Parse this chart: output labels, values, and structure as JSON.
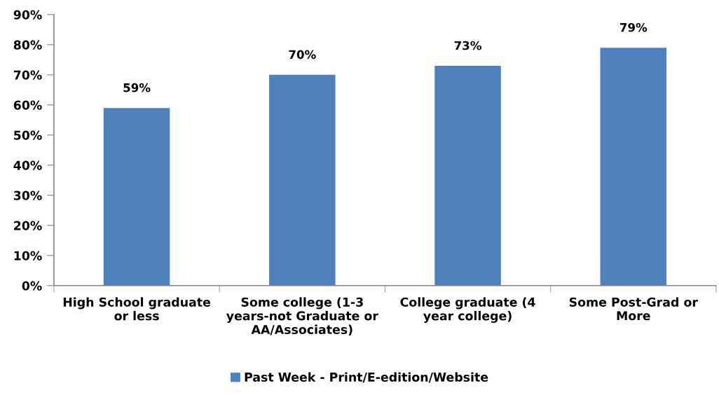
{
  "chart_data": {
    "type": "bar",
    "categories": [
      "High School graduate\nor less",
      "Some college (1-3\nyears-not Graduate or\nAA/Associates)",
      "College graduate (4\nyear college)",
      "Some Post-Grad or\nMore"
    ],
    "series": [
      {
        "name": "Past Week - Print/E-edition/Website",
        "color": "#4f81bd",
        "values": [
          59,
          70,
          73,
          79
        ],
        "value_labels": [
          "59%",
          "70%",
          "73%",
          "79%"
        ]
      }
    ],
    "ylim": [
      0,
      90
    ],
    "yticks": [
      {
        "value": 0,
        "label": "0%"
      },
      {
        "value": 10,
        "label": "10%"
      },
      {
        "value": 20,
        "label": "20%"
      },
      {
        "value": 30,
        "label": "30%"
      },
      {
        "value": 40,
        "label": "40%"
      },
      {
        "value": 50,
        "label": "50%"
      },
      {
        "value": 60,
        "label": "60%"
      },
      {
        "value": 70,
        "label": "70%"
      },
      {
        "value": 80,
        "label": "80%"
      },
      {
        "value": 90,
        "label": "90%"
      }
    ],
    "grid": false,
    "legend": "bottom"
  }
}
